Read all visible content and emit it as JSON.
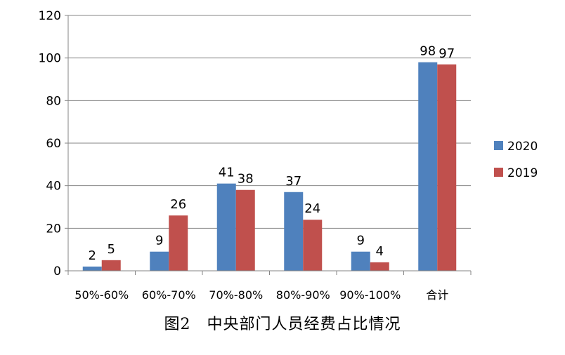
{
  "caption": "图2　中央部门人员经费占比情况",
  "chart_data": {
    "type": "bar",
    "title": "",
    "xlabel": "",
    "ylabel": "",
    "categories": [
      "50%-60%",
      "60%-70%",
      "70%-80%",
      "80%-90%",
      "90%-100%",
      "合计"
    ],
    "series": [
      {
        "name": "2020",
        "color": "#4F81BD",
        "values": [
          2,
          9,
          41,
          37,
          9,
          98
        ]
      },
      {
        "name": "2019",
        "color": "#C0504D",
        "values": [
          5,
          26,
          38,
          24,
          4,
          97
        ]
      }
    ],
    "ylim": [
      0,
      120
    ],
    "yticks": [
      0,
      20,
      40,
      60,
      80,
      100,
      120
    ],
    "grid": true,
    "legend": "right",
    "data_labels": true
  }
}
